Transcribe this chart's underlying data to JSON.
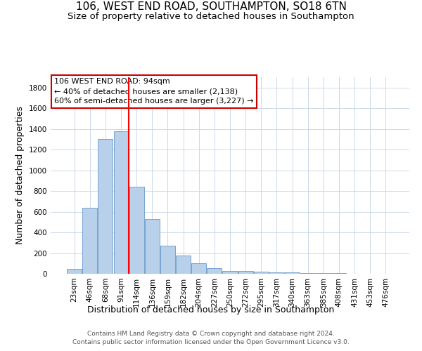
{
  "title": "106, WEST END ROAD, SOUTHAMPTON, SO18 6TN",
  "subtitle": "Size of property relative to detached houses in Southampton",
  "xlabel": "Distribution of detached houses by size in Southampton",
  "ylabel": "Number of detached properties",
  "categories": [
    "23sqm",
    "46sqm",
    "68sqm",
    "91sqm",
    "114sqm",
    "136sqm",
    "159sqm",
    "182sqm",
    "204sqm",
    "227sqm",
    "250sqm",
    "272sqm",
    "295sqm",
    "317sqm",
    "340sqm",
    "363sqm",
    "385sqm",
    "408sqm",
    "431sqm",
    "453sqm",
    "476sqm"
  ],
  "values": [
    50,
    640,
    1300,
    1380,
    840,
    530,
    270,
    175,
    100,
    55,
    30,
    30,
    20,
    15,
    15,
    10,
    5,
    10,
    3,
    2,
    2
  ],
  "bar_color": "#b8d0ea",
  "bar_edge_color": "#6699cc",
  "red_line_x": 3.5,
  "annotation_text": "106 WEST END ROAD: 94sqm\n← 40% of detached houses are smaller (2,138)\n60% of semi-detached houses are larger (3,227) →",
  "footer_line1": "Contains HM Land Registry data © Crown copyright and database right 2024.",
  "footer_line2": "Contains public sector information licensed under the Open Government Licence v3.0.",
  "ylim": [
    0,
    1900
  ],
  "yticks": [
    0,
    200,
    400,
    600,
    800,
    1000,
    1200,
    1400,
    1600,
    1800
  ],
  "background_color": "#ffffff",
  "grid_color": "#ccd9e8",
  "annotation_box_color": "#ffffff",
  "annotation_box_edge": "#cc0000",
  "title_fontsize": 11,
  "subtitle_fontsize": 9.5,
  "axis_label_fontsize": 9,
  "tick_fontsize": 7.5,
  "annotation_fontsize": 8,
  "footer_fontsize": 6.5
}
